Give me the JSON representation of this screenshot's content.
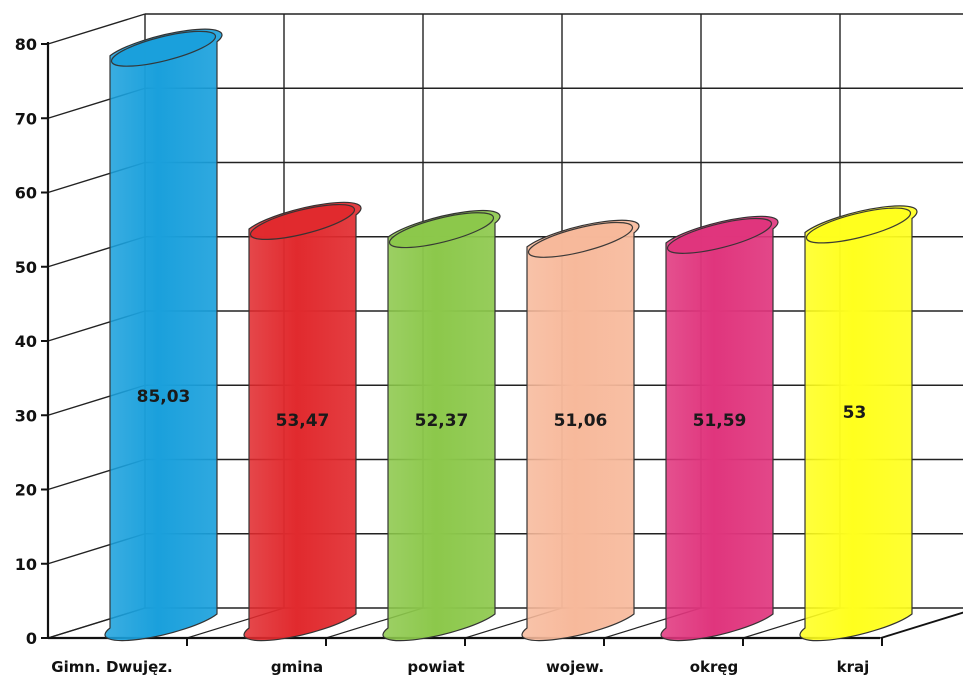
{
  "chart_data": {
    "type": "bar",
    "categories": [
      "Gimn. Dwujęz.",
      "gmina",
      "powiat",
      "wojew.",
      "okręg",
      "kraj"
    ],
    "values": [
      85.03,
      53.47,
      52.37,
      51.06,
      51.59,
      53
    ],
    "data_labels": [
      "85,03",
      "53,47",
      "52,37",
      "51,06",
      "51,59",
      "53"
    ],
    "colors": [
      "#1aa0dc",
      "#e12a2e",
      "#8cc84b",
      "#f7b99b",
      "#e0357d",
      "#ffff1e"
    ],
    "ylim": [
      0,
      80
    ],
    "yticks": [
      "0",
      "10",
      "20",
      "30",
      "40",
      "50",
      "60",
      "70",
      "80"
    ],
    "grid": true,
    "style": "3d-cylinder",
    "title": "",
    "xlabel": "",
    "ylabel": ""
  }
}
